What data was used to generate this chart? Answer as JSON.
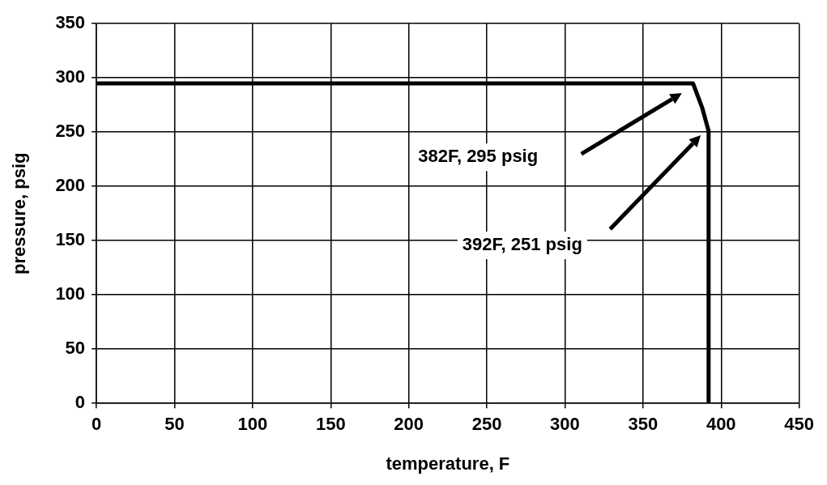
{
  "chart_data": {
    "type": "line",
    "xlabel": "temperature, F",
    "ylabel": "pressure, psig",
    "x": [
      0,
      382,
      388,
      392,
      392
    ],
    "series": [
      {
        "color": "#000000",
        "values": [
          295,
          295,
          272,
          251,
          2
        ]
      }
    ],
    "xlim": [
      0,
      450
    ],
    "xticks": [
      0,
      50,
      100,
      150,
      200,
      250,
      300,
      350,
      400,
      450
    ],
    "ylim": [
      0,
      350
    ],
    "yticks": [
      0,
      50,
      100,
      150,
      200,
      250,
      300,
      350
    ],
    "grid": true,
    "legend": false,
    "marker": "none",
    "line_style": "solid",
    "annotations": [
      "382F, 295 psig",
      "392F, 251 psig"
    ]
  }
}
